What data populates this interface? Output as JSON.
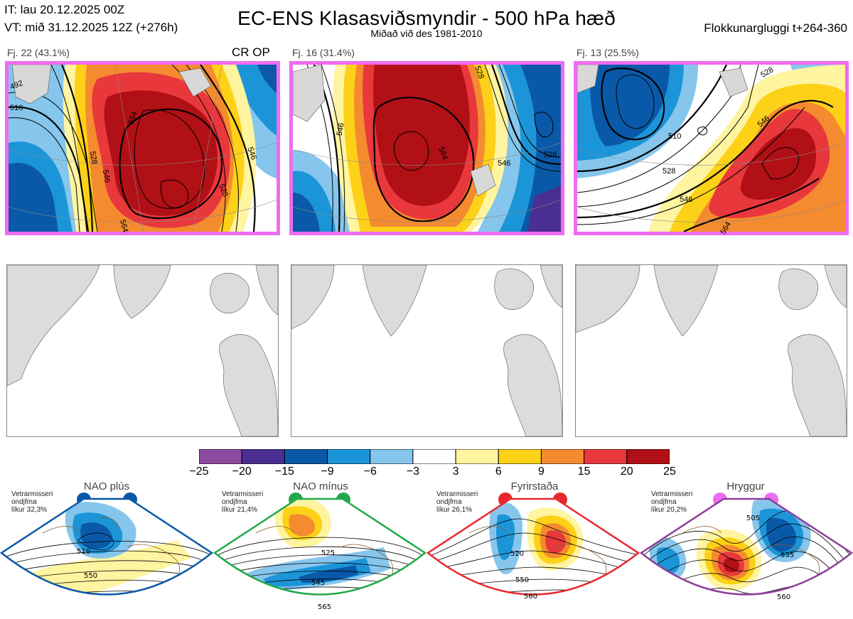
{
  "header": {
    "it_line": "IT: lau 20.12.2025 00Z",
    "vt_line": "VT: mið 31.12.2025 12Z  (+276h)",
    "title": "EC-ENS Klasasviðsmyndir - 500 hPa hæð",
    "subtitle": "Miðað við des 1981-2010",
    "window": "Flokkunargluggi t+264-360"
  },
  "clusters": [
    {
      "label": "Fj. 22 (43.1%)",
      "tag": "CR OP",
      "contour_labels": [
        "492",
        "510",
        "528",
        "546",
        "554",
        "546",
        "528",
        "564"
      ]
    },
    {
      "label": "Fj. 16 (31.4%)",
      "tag": "",
      "contour_labels": [
        "546",
        "564",
        "528",
        "546",
        "528"
      ]
    },
    {
      "label": "Fj. 13 (25.5%)",
      "tag": "",
      "contour_labels": [
        "528",
        "510",
        "528",
        "546",
        "546",
        "564"
      ]
    }
  ],
  "colorbar": {
    "labels": [
      "−25",
      "−20",
      "−15",
      "−9",
      "−6",
      "−3",
      "3",
      "6",
      "9",
      "15",
      "20",
      "25"
    ],
    "colors": [
      "#8e4a9e",
      "#4a2e91",
      "#0a59a8",
      "#1c95d8",
      "#86c6ec",
      "#ffffff",
      "#fff4a0",
      "#fdd118",
      "#f58b2f",
      "#e8383c",
      "#b01016"
    ]
  },
  "regimes": [
    {
      "name": "NAO plús",
      "note": [
        "Vetrarmisseri",
        "ondjfma",
        "líkur 32,3%"
      ],
      "color": "#0a59a8",
      "contour_labels": [
        "510",
        "550"
      ]
    },
    {
      "name": "NAO mínus",
      "note": [
        "Vetrarmisseri",
        "ondjfma",
        "líkur 21,4%"
      ],
      "color": "#22a84a",
      "contour_labels": [
        "525",
        "545",
        "565"
      ]
    },
    {
      "name": "Fyrirstaða",
      "note": [
        "Vetrarmisseri",
        "ondjfma",
        "líkur 26,1%"
      ],
      "color": "#e8282c",
      "contour_labels": [
        "520",
        "550",
        "560"
      ]
    },
    {
      "name": "Hryggur",
      "note": [
        "Vetrarmisseri",
        "ondjfma",
        "líkur 20,2%"
      ],
      "color": "#ee6cf0",
      "contour_labels": [
        "505",
        "535",
        "560"
      ]
    }
  ]
}
